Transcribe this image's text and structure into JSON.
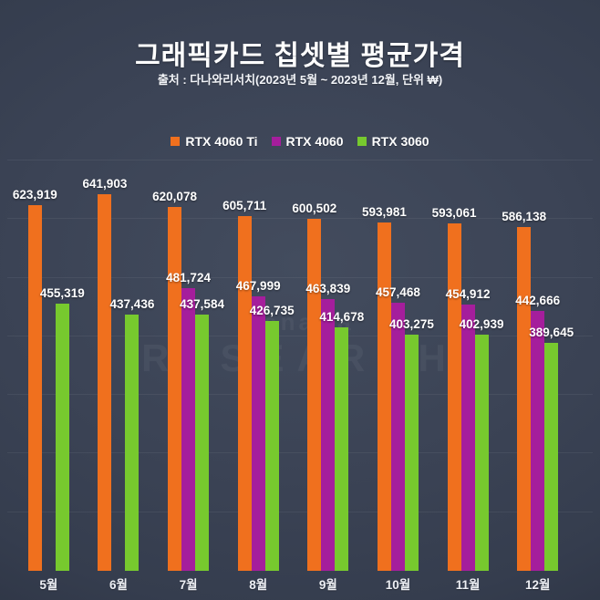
{
  "header": {
    "title": "그래픽카드 칩셋별 평균가격",
    "subtitle": "출처 : 다나와리서치(2023년 5월 ~ 2023년 12월, 단위 ₩)"
  },
  "watermark": {
    "line1": "danawa",
    "line2": "RESEARCH"
  },
  "colors": {
    "background_center": "#3B4355",
    "background_edge": "#272D3C",
    "gridline": "rgba(255,255,255,0.06)",
    "text": "#FFFFFF"
  },
  "chart_data": {
    "type": "bar",
    "title": "그래픽카드 칩셋별 평균가격",
    "subtitle": "출처 : 다나와리서치(2023년 5월 ~ 2023년 12월, 단위 ₩)",
    "categories": [
      "5월",
      "6월",
      "7월",
      "8월",
      "9월",
      "10월",
      "11월",
      "12월"
    ],
    "series": [
      {
        "name": "RTX 4060 Ti",
        "color": "#F0701E",
        "values": [
          623919,
          641903,
          620078,
          605711,
          600502,
          593981,
          593061,
          586138
        ]
      },
      {
        "name": "RTX 4060",
        "color": "#A51E9C",
        "values": [
          null,
          null,
          481724,
          467999,
          463839,
          457468,
          454912,
          442666
        ]
      },
      {
        "name": "RTX 3060",
        "color": "#77C92E",
        "values": [
          455319,
          437436,
          437584,
          426735,
          414678,
          403275,
          402939,
          389645
        ]
      }
    ],
    "ylim": [
      0,
      700000
    ],
    "gridline_interval": 100000,
    "grid": true,
    "y_axis_labels_visible": false,
    "legend_position": "top",
    "value_labels": true
  }
}
